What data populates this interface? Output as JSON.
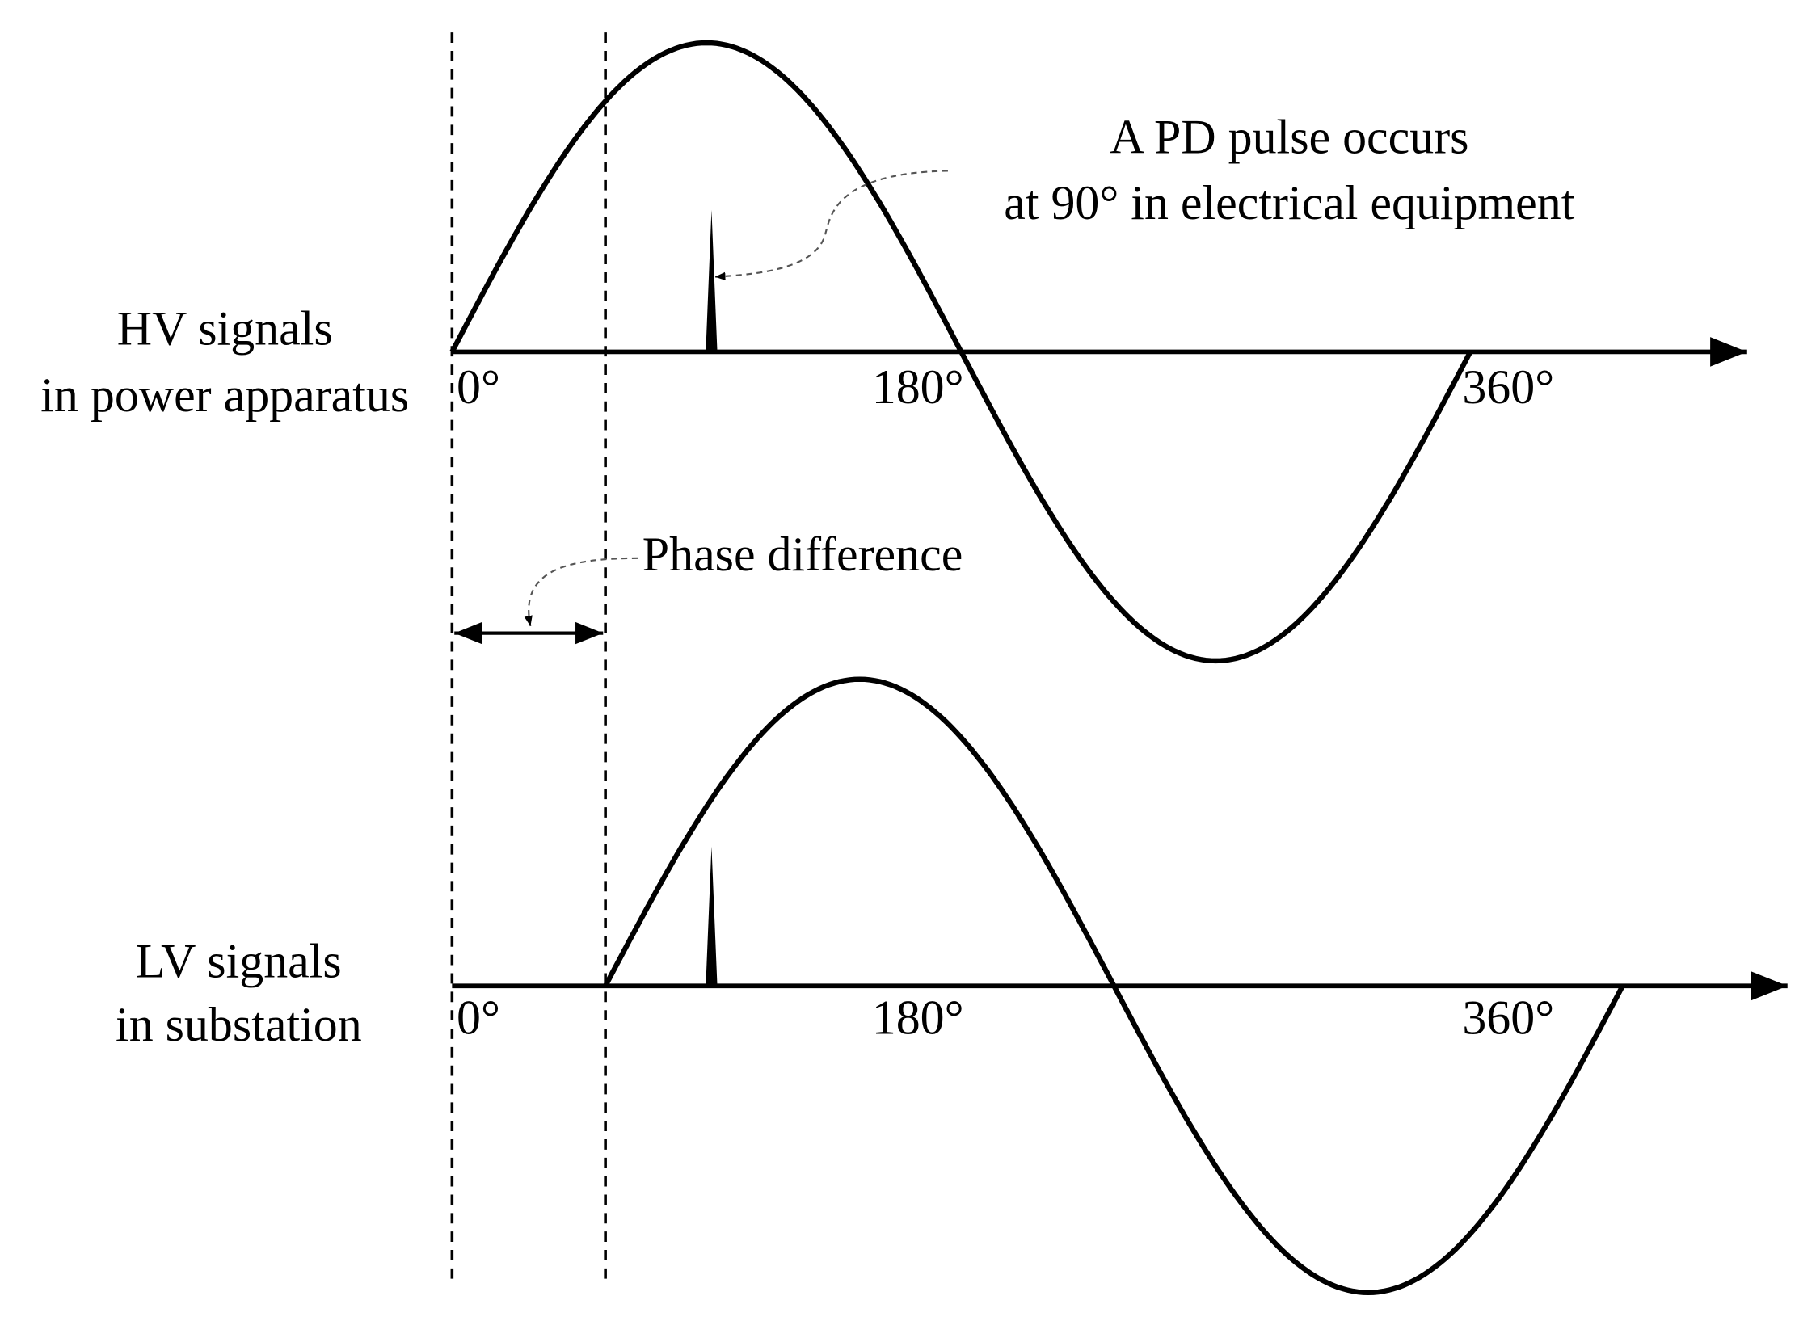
{
  "hv": {
    "label": [
      "HV signals",
      "in power apparatus"
    ],
    "ticks": [
      "0°",
      "180°",
      "360°"
    ]
  },
  "lv": {
    "label": [
      "LV signals",
      "in substation"
    ],
    "ticks": [
      "0°",
      "180°",
      "360°"
    ]
  },
  "annotations": {
    "pd_pulse": [
      "A PD pulse occurs",
      "at 90° in electrical equipment"
    ],
    "phase_difference": "Phase difference"
  }
}
